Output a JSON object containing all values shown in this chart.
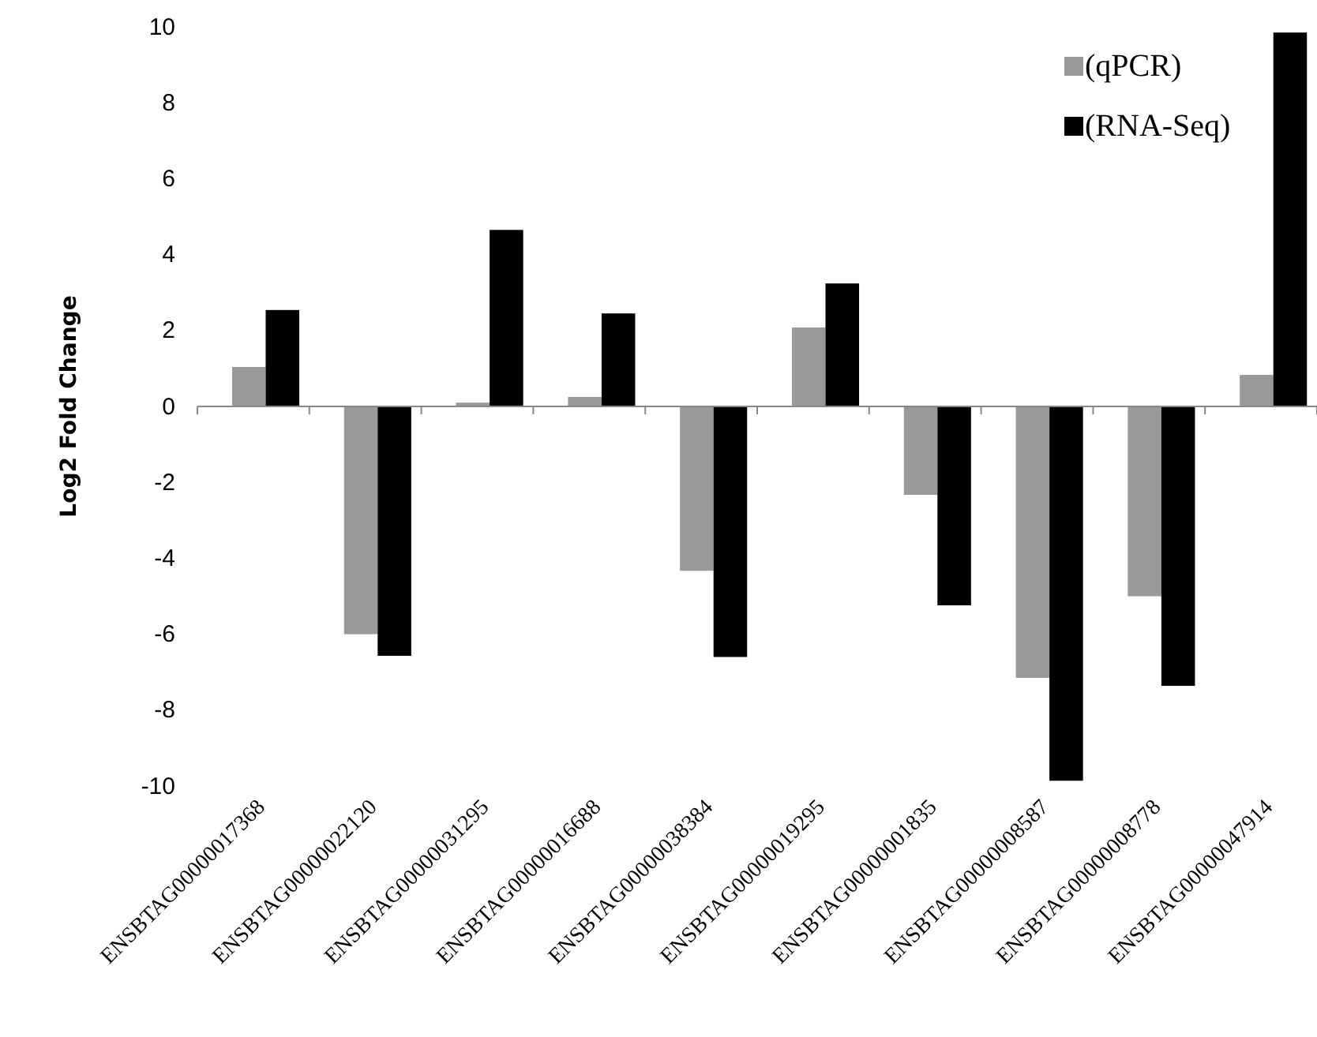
{
  "chart_data": {
    "type": "bar",
    "ylabel": "Log2 Fold Change",
    "categories": [
      "ENSBTAG00000017368",
      "ENSBTAG00000022120",
      "ENSBTAG00000031295",
      "ENSBTAG00000016688",
      "ENSBTAG00000038384",
      "ENSBTAG00000019295",
      "ENSBTAG00000001835",
      "ENSBTAG00000008587",
      "ENSBTAG00000008778",
      "ENSBTAG00000047914"
    ],
    "series": [
      {
        "name": "(qPCR)",
        "color": "#999999",
        "values": [
          1.04,
          -6.0,
          0.1,
          0.25,
          -4.33,
          2.08,
          -2.33,
          -7.15,
          -5.0,
          0.83
        ]
      },
      {
        "name": "(RNA-Seq)",
        "color": "#000000",
        "values": [
          2.54,
          -6.57,
          4.65,
          2.45,
          -6.6,
          3.24,
          -5.24,
          -9.86,
          -7.36,
          9.85
        ]
      }
    ],
    "ylim": [
      -10,
      10
    ],
    "yticks": [
      -10,
      -8,
      -6,
      -4,
      -2,
      0,
      2,
      4,
      6,
      8,
      10
    ],
    "legend": "top right"
  }
}
